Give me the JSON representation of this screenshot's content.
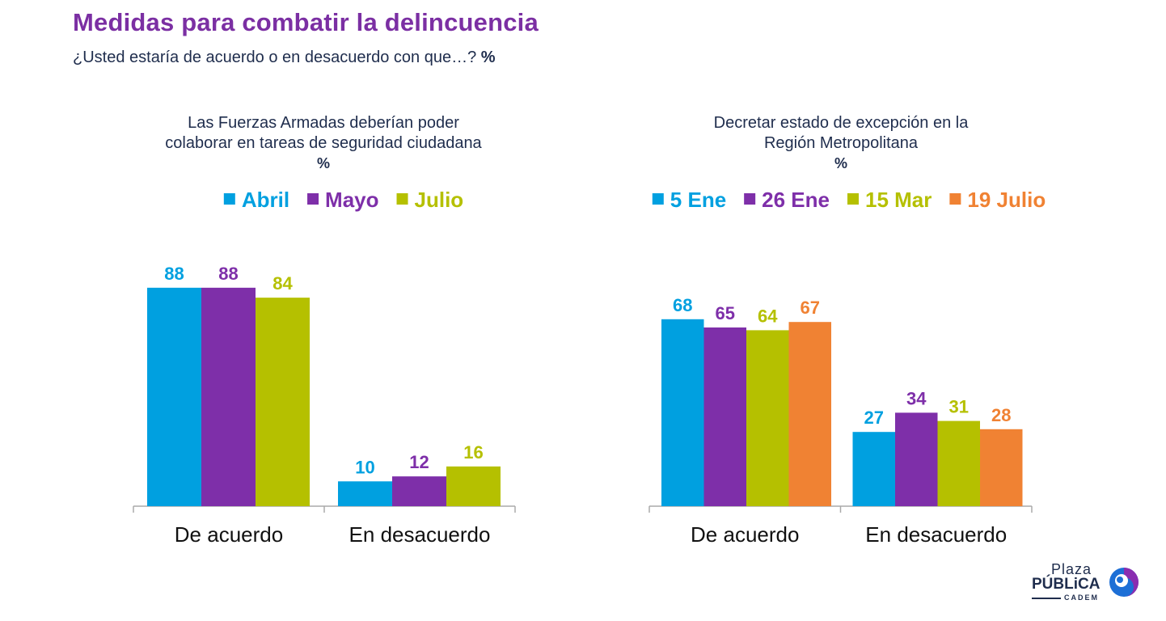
{
  "header": {
    "title": "Medidas para combatir la delincuencia",
    "subtitle": "¿Usted estaría de acuerdo o en desacuerdo con que…?",
    "subtitle_unit": "%"
  },
  "logo": {
    "line1": "Plaza",
    "line2": "PÚBLiCA",
    "line3": "CADEM"
  },
  "colors": {
    "blue": "#00a0e0",
    "purple": "#7e2fa9",
    "olive": "#b5c000",
    "orange": "#f08233",
    "axis": "#aaaaaa",
    "text": "#1f2d4d"
  },
  "chart_data": [
    {
      "type": "bar",
      "title": "Las Fuerzas Armadas deberían poder colaborar en tareas de seguridad ciudadana",
      "title_lines": [
        "Las Fuerzas Armadas deberían poder",
        "colaborar en tareas de seguridad ciudadana"
      ],
      "unit": "%",
      "categories": [
        "De acuerdo",
        "En desacuerdo"
      ],
      "series": [
        {
          "name": "Abril",
          "color": "#00a0e0",
          "values": [
            88,
            10
          ]
        },
        {
          "name": "Mayo",
          "color": "#7e2fa9",
          "values": [
            88,
            12
          ]
        },
        {
          "name": "Julio",
          "color": "#b5c000",
          "values": [
            84,
            16
          ]
        }
      ],
      "ylim": [
        0,
        100
      ],
      "grid": false,
      "legend": "top-center"
    },
    {
      "type": "bar",
      "title": "Decretar estado de excepción en la Región Metropolitana",
      "title_lines": [
        "Decretar estado de excepción en la",
        "Región Metropolitana"
      ],
      "unit": "%",
      "categories": [
        "De acuerdo",
        "En desacuerdo"
      ],
      "series": [
        {
          "name": "5 Ene",
          "color": "#00a0e0",
          "values": [
            68,
            27
          ]
        },
        {
          "name": "26 Ene",
          "color": "#7e2fa9",
          "values": [
            65,
            34
          ]
        },
        {
          "name": "15 Mar",
          "color": "#b5c000",
          "values": [
            64,
            31
          ]
        },
        {
          "name": "19 Julio",
          "color": "#f08233",
          "values": [
            67,
            28
          ]
        }
      ],
      "ylim": [
        0,
        100
      ],
      "grid": false,
      "legend": "top-center"
    }
  ]
}
